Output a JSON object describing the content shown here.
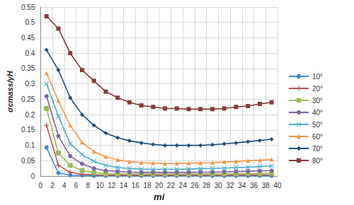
{
  "chart_data": {
    "type": "line",
    "x_label": "mi",
    "y_label": "σcmass/γH",
    "x": [
      1,
      3,
      5,
      7,
      9,
      11,
      13,
      15,
      17,
      19,
      21,
      23,
      25,
      27,
      29,
      31,
      33,
      35,
      37,
      39
    ],
    "xlim": [
      0,
      40
    ],
    "xticks": [
      0,
      2,
      4,
      6,
      8,
      10,
      12,
      14,
      16,
      18,
      20,
      22,
      24,
      26,
      28,
      30,
      32,
      34,
      36,
      38,
      40
    ],
    "ylim": [
      0,
      0.55
    ],
    "yticks": [
      0,
      0.05,
      0.1,
      0.15,
      0.2,
      0.25,
      0.3,
      0.35,
      0.4,
      0.45,
      0.5,
      0.55
    ],
    "grid": true,
    "legend": "right",
    "series": [
      {
        "name": "10°",
        "color": "#3c8dcf",
        "marker": "circle",
        "values": [
          0.093,
          0.01,
          0.003,
          0.002,
          0.001,
          0.001,
          0.001,
          0.001,
          0.001,
          0.001,
          0.001,
          0.001,
          0.001,
          0.001,
          0.001,
          0.001,
          0.001,
          0.001,
          0.001,
          0.001
        ]
      },
      {
        "name": "20°",
        "color": "#c0504d",
        "marker": "plus",
        "values": [
          0.165,
          0.035,
          0.012,
          0.006,
          0.004,
          0.003,
          0.003,
          0.003,
          0.003,
          0.003,
          0.003,
          0.003,
          0.003,
          0.003,
          0.003,
          0.003,
          0.004,
          0.004,
          0.004,
          0.004
        ]
      },
      {
        "name": "30°",
        "color": "#9bbb59",
        "marker": "dash",
        "values": [
          0.22,
          0.075,
          0.035,
          0.018,
          0.011,
          0.008,
          0.007,
          0.007,
          0.007,
          0.007,
          0.007,
          0.007,
          0.007,
          0.007,
          0.008,
          0.008,
          0.008,
          0.009,
          0.009,
          0.01
        ]
      },
      {
        "name": "40°",
        "color": "#8064a2",
        "marker": "circle",
        "values": [
          0.26,
          0.13,
          0.065,
          0.04,
          0.025,
          0.018,
          0.015,
          0.013,
          0.012,
          0.012,
          0.012,
          0.012,
          0.012,
          0.013,
          0.013,
          0.014,
          0.015,
          0.016,
          0.017,
          0.018
        ]
      },
      {
        "name": "50°",
        "color": "#4bacc6",
        "marker": "x",
        "values": [
          0.3,
          0.195,
          0.105,
          0.07,
          0.048,
          0.035,
          0.028,
          0.025,
          0.023,
          0.022,
          0.022,
          0.022,
          0.023,
          0.024,
          0.025,
          0.026,
          0.028,
          0.029,
          0.031,
          0.033
        ]
      },
      {
        "name": "60°",
        "color": "#f79646",
        "marker": "triangle",
        "values": [
          0.335,
          0.245,
          0.165,
          0.11,
          0.08,
          0.063,
          0.053,
          0.047,
          0.044,
          0.042,
          0.041,
          0.041,
          0.042,
          0.043,
          0.044,
          0.046,
          0.048,
          0.05,
          0.052,
          0.054
        ]
      },
      {
        "name": "70°",
        "color": "#1f4e79",
        "marker": "diamond",
        "values": [
          0.41,
          0.345,
          0.255,
          0.2,
          0.165,
          0.14,
          0.125,
          0.115,
          0.108,
          0.103,
          0.1,
          0.1,
          0.1,
          0.1,
          0.102,
          0.105,
          0.108,
          0.112,
          0.116,
          0.12
        ]
      },
      {
        "name": "80°",
        "color": "#843c39",
        "marker": "square",
        "values": [
          0.52,
          0.48,
          0.4,
          0.345,
          0.31,
          0.275,
          0.255,
          0.24,
          0.23,
          0.225,
          0.22,
          0.22,
          0.218,
          0.218,
          0.218,
          0.22,
          0.225,
          0.228,
          0.235,
          0.24
        ]
      }
    ]
  }
}
